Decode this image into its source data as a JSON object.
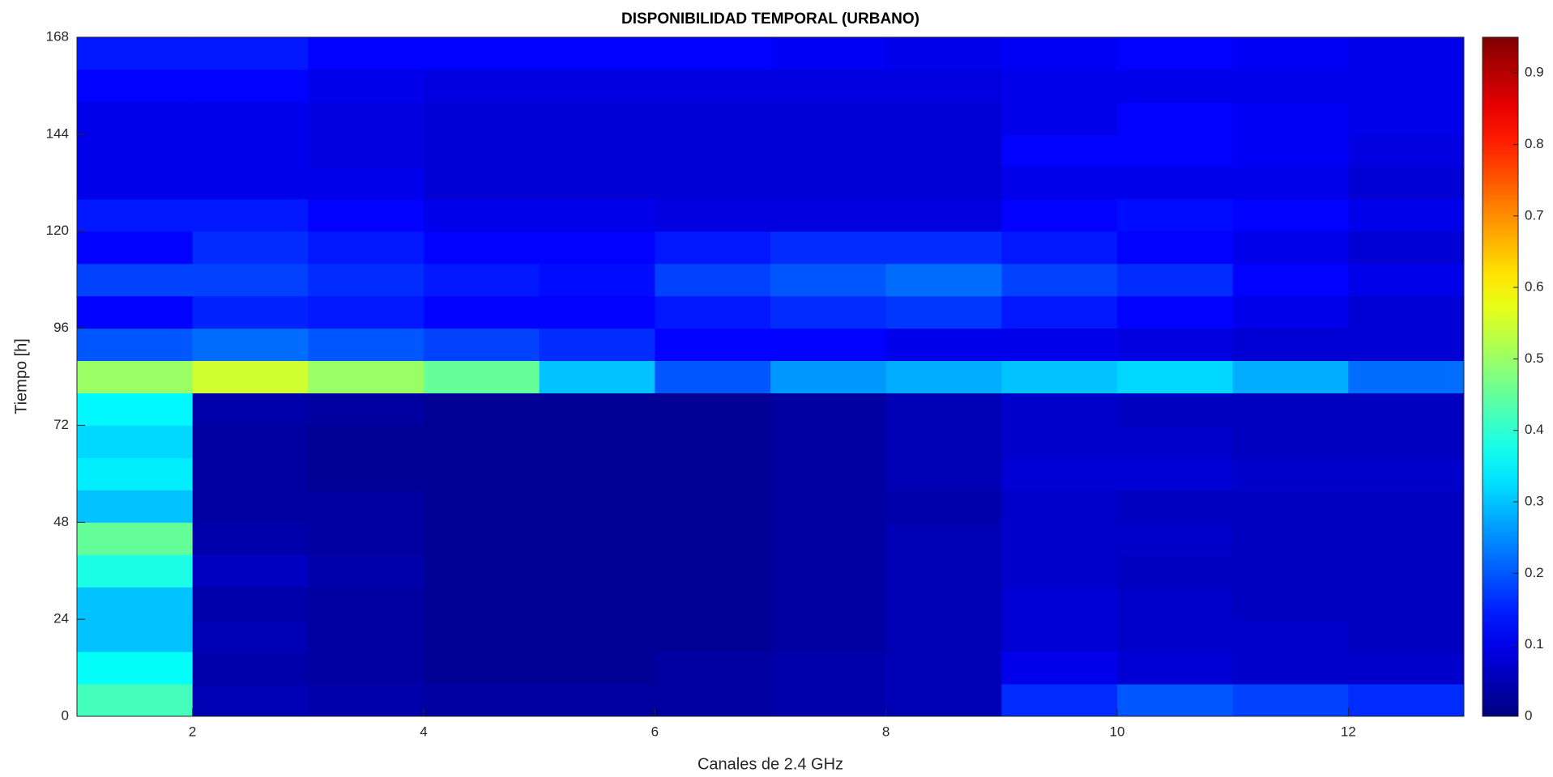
{
  "chart_data": {
    "type": "heatmap",
    "title": "DISPONIBILIDAD TEMPORAL (URBANO)",
    "x_label": "Canales de 2.4 GHz",
    "y_label": "Tiempo [h]",
    "colormap": "jet",
    "x_bins": [
      1,
      2,
      3,
      4,
      5,
      6,
      7,
      8,
      9,
      10,
      11,
      12,
      13
    ],
    "y_bins": [
      0,
      8,
      16,
      24,
      32,
      40,
      48,
      56,
      64,
      72,
      80,
      88,
      96,
      104,
      112,
      120,
      128,
      136,
      144,
      152,
      160,
      168
    ],
    "values": [
      [
        0.42,
        0.05,
        0.04,
        0.03,
        0.03,
        0.03,
        0.04,
        0.05,
        0.16,
        0.2,
        0.18,
        0.16
      ],
      [
        0.36,
        0.04,
        0.03,
        0.02,
        0.02,
        0.03,
        0.04,
        0.05,
        0.1,
        0.08,
        0.07,
        0.07
      ],
      [
        0.3,
        0.05,
        0.03,
        0.02,
        0.02,
        0.02,
        0.03,
        0.05,
        0.08,
        0.07,
        0.07,
        0.06
      ],
      [
        0.3,
        0.04,
        0.03,
        0.02,
        0.02,
        0.02,
        0.03,
        0.05,
        0.08,
        0.07,
        0.06,
        0.06
      ],
      [
        0.38,
        0.06,
        0.04,
        0.02,
        0.02,
        0.02,
        0.03,
        0.05,
        0.07,
        0.06,
        0.06,
        0.06
      ],
      [
        0.45,
        0.04,
        0.03,
        0.02,
        0.02,
        0.02,
        0.03,
        0.05,
        0.07,
        0.07,
        0.06,
        0.06
      ],
      [
        0.3,
        0.03,
        0.03,
        0.02,
        0.02,
        0.02,
        0.03,
        0.04,
        0.07,
        0.06,
        0.06,
        0.06
      ],
      [
        0.34,
        0.03,
        0.02,
        0.02,
        0.02,
        0.02,
        0.03,
        0.05,
        0.08,
        0.08,
        0.07,
        0.07
      ],
      [
        0.32,
        0.03,
        0.02,
        0.02,
        0.02,
        0.02,
        0.03,
        0.05,
        0.07,
        0.07,
        0.06,
        0.06
      ],
      [
        0.35,
        0.04,
        0.03,
        0.02,
        0.02,
        0.02,
        0.03,
        0.05,
        0.07,
        0.06,
        0.06,
        0.06
      ],
      [
        0.5,
        0.55,
        0.5,
        0.45,
        0.3,
        0.2,
        0.26,
        0.28,
        0.3,
        0.32,
        0.28,
        0.22
      ],
      [
        0.2,
        0.22,
        0.2,
        0.18,
        0.16,
        0.12,
        0.12,
        0.1,
        0.1,
        0.09,
        0.08,
        0.08
      ],
      [
        0.12,
        0.15,
        0.14,
        0.12,
        0.12,
        0.14,
        0.16,
        0.17,
        0.14,
        0.12,
        0.1,
        0.08
      ],
      [
        0.18,
        0.18,
        0.16,
        0.14,
        0.13,
        0.18,
        0.2,
        0.22,
        0.18,
        0.16,
        0.12,
        0.1
      ],
      [
        0.12,
        0.16,
        0.14,
        0.12,
        0.12,
        0.14,
        0.16,
        0.16,
        0.14,
        0.12,
        0.1,
        0.08
      ],
      [
        0.14,
        0.14,
        0.12,
        0.1,
        0.1,
        0.09,
        0.09,
        0.09,
        0.12,
        0.13,
        0.12,
        0.1
      ],
      [
        0.1,
        0.1,
        0.1,
        0.08,
        0.08,
        0.08,
        0.08,
        0.08,
        0.1,
        0.1,
        0.1,
        0.08
      ],
      [
        0.1,
        0.1,
        0.09,
        0.08,
        0.08,
        0.08,
        0.08,
        0.08,
        0.12,
        0.12,
        0.11,
        0.09
      ],
      [
        0.1,
        0.1,
        0.09,
        0.08,
        0.08,
        0.08,
        0.08,
        0.08,
        0.1,
        0.12,
        0.11,
        0.1
      ],
      [
        0.12,
        0.12,
        0.1,
        0.09,
        0.09,
        0.09,
        0.09,
        0.09,
        0.1,
        0.1,
        0.1,
        0.1
      ],
      [
        0.14,
        0.14,
        0.12,
        0.12,
        0.12,
        0.12,
        0.11,
        0.1,
        0.11,
        0.12,
        0.11,
        0.1
      ]
    ],
    "xlim": [
      1,
      13
    ],
    "xticks": [
      2,
      4,
      6,
      8,
      10,
      12
    ],
    "ylim": [
      0,
      168
    ],
    "yticks": [
      0,
      24,
      48,
      72,
      96,
      120,
      144,
      168
    ],
    "clim": [
      0,
      0.95
    ],
    "cticks": [
      0,
      0.1,
      0.2,
      0.3,
      0.4,
      0.5,
      0.6,
      0.7,
      0.8,
      0.9
    ]
  }
}
